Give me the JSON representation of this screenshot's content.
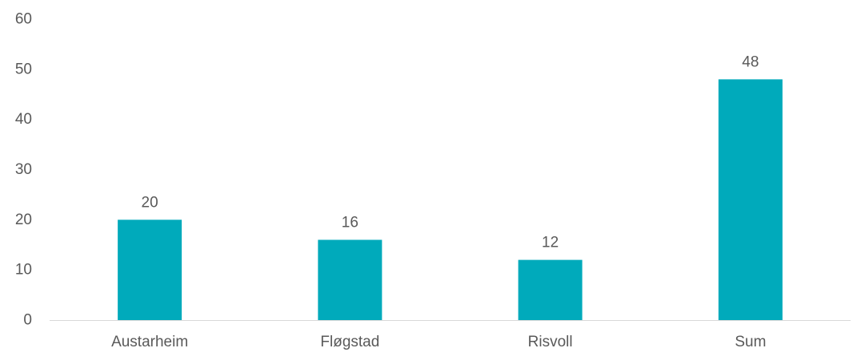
{
  "chart_data": {
    "type": "bar",
    "categories": [
      "Austarheim",
      "Fløgstad",
      "Risvoll",
      "Sum"
    ],
    "values": [
      20,
      16,
      12,
      48
    ],
    "data_labels": [
      "20",
      "16",
      "12",
      "48"
    ],
    "title": "",
    "xlabel": "",
    "ylabel": "",
    "ylim": [
      0,
      60
    ],
    "yticks": [
      0,
      10,
      20,
      30,
      40,
      50,
      60
    ],
    "grid": false,
    "legend": "none",
    "colors": {
      "bar": "#00AABB",
      "axis": "#D9D9D9",
      "text": "#595959"
    }
  }
}
